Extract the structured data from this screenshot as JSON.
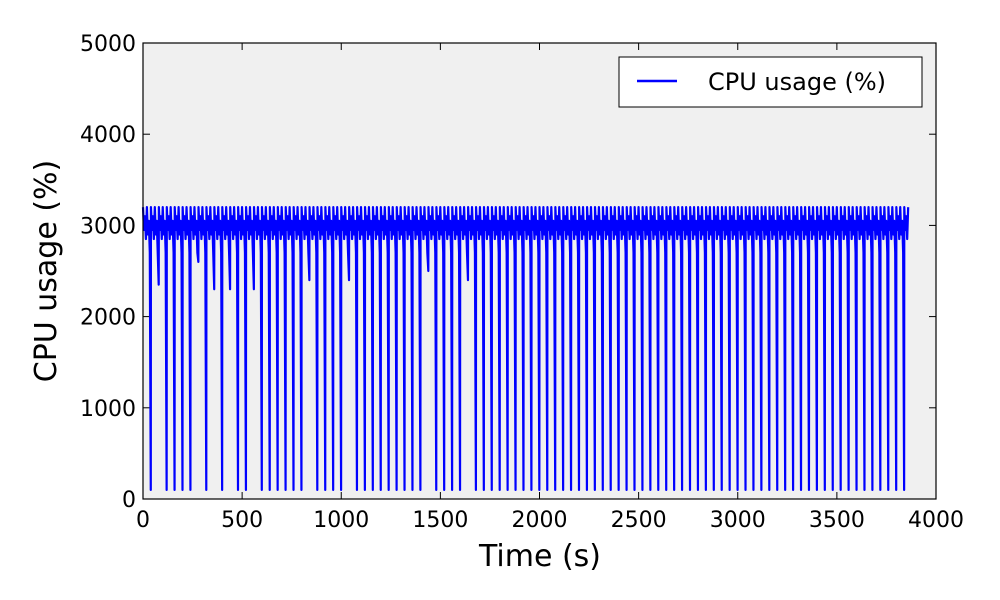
{
  "chart_data": {
    "type": "line",
    "title": "",
    "xlabel": "Time (s)",
    "ylabel": "CPU usage (%)",
    "xlim": [
      0,
      4000
    ],
    "ylim": [
      0,
      5000
    ],
    "xticks": [
      0,
      500,
      1000,
      1500,
      2000,
      2500,
      3000,
      3500,
      4000
    ],
    "yticks": [
      0,
      1000,
      2000,
      3000,
      4000,
      5000
    ],
    "grid": false,
    "legend_position": "top-right",
    "plot_background": "#f0f0f0",
    "series": [
      {
        "name": "CPU usage (%)",
        "color": "#0000ff",
        "pattern": {
          "x_start": 0,
          "x_end": 3860,
          "period_s": 40,
          "cycle_y": [
            3200,
            2950,
            3100,
            2850,
            3200,
            2900,
            3050,
            2700,
            100
          ],
          "trough_y": [
            100,
            2350,
            100,
            100,
            100,
            100,
            2600,
            100,
            2300,
            100,
            2300,
            100,
            100,
            2300,
            100,
            100,
            100,
            100,
            100,
            100,
            2400,
            100,
            100,
            100,
            100,
            2400,
            100,
            100,
            100,
            100,
            100,
            100,
            100,
            100,
            100,
            2500,
            100,
            100,
            100,
            100,
            2400,
            100,
            100,
            100,
            100,
            100,
            100,
            100,
            100,
            100,
            100,
            100,
            100,
            100,
            100,
            100,
            100,
            100,
            100,
            100,
            100,
            100,
            100,
            100,
            100,
            100,
            100,
            100,
            100,
            100,
            100,
            100,
            100,
            100,
            100,
            100,
            100,
            100,
            100,
            100,
            100,
            100,
            100,
            100,
            100,
            100,
            100,
            100,
            100,
            100,
            100,
            100,
            100,
            100,
            100,
            100,
            100
          ]
        }
      }
    ]
  }
}
